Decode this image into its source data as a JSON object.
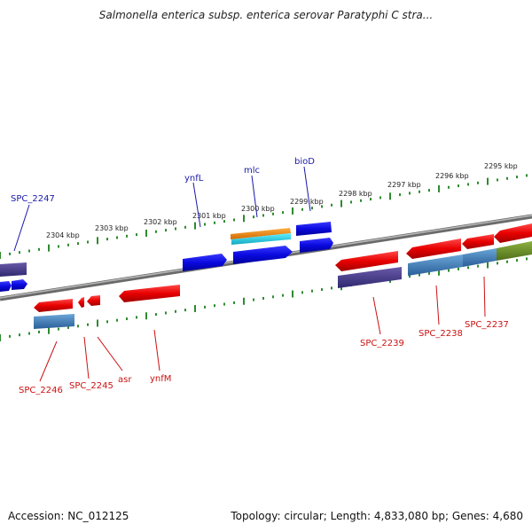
{
  "title": "Salmonella enterica subsp. enterica serovar Paratyphi C stra...",
  "footer": {
    "accession": "Accession: NC_012125",
    "summary": "Topology: circular; Length: 4,833,080 bp; Genes: 4,680"
  },
  "colors": {
    "forward_label": "#1a1aaa",
    "reverse_label": "#cc1111",
    "backbone": "#8a8a8a",
    "tick": "#2e8b2e"
  },
  "ticks": [
    {
      "label": "2295 kbp",
      "kbp": 2295
    },
    {
      "label": "2296 kbp",
      "kbp": 2296
    },
    {
      "label": "2297 kbp",
      "kbp": 2297
    },
    {
      "label": "2298 kbp",
      "kbp": 2298
    },
    {
      "label": "2299 kbp",
      "kbp": 2299
    },
    {
      "label": "2300 kbp",
      "kbp": 2300
    },
    {
      "label": "2301 kbp",
      "kbp": 2301
    },
    {
      "label": "2302 kbp",
      "kbp": 2302
    },
    {
      "label": "2303 kbp",
      "kbp": 2303
    },
    {
      "label": "2304 kbp",
      "kbp": 2304
    }
  ],
  "forward_labels": [
    {
      "name": "SPC_2247"
    },
    {
      "name": "ynfL"
    },
    {
      "name": "mlc"
    },
    {
      "name": "bioD"
    }
  ],
  "reverse_labels": [
    {
      "name": "SPC_2246"
    },
    {
      "name": "SPC_2245"
    },
    {
      "name": "asr"
    },
    {
      "name": "ynfM"
    },
    {
      "name": "SPC_2239"
    },
    {
      "name": "SPC_2238"
    },
    {
      "name": "SPC_2237"
    }
  ]
}
